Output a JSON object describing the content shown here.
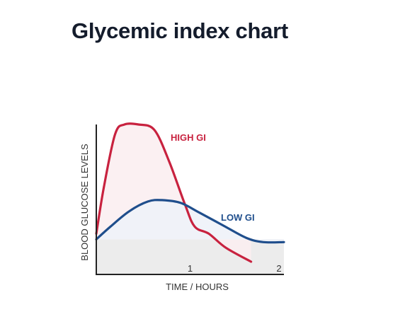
{
  "page": {
    "title": "Glycemic index chart"
  },
  "chart_data": {
    "type": "line",
    "title": "Glycemic index chart",
    "xlabel": "TIME / HOURS",
    "ylabel": "BLOOD GLUCOSE LEVELS",
    "xlim": [
      0,
      2
    ],
    "ylim": [
      0,
      1
    ],
    "x_ticks": [
      1,
      2
    ],
    "grid": false,
    "baseline": 0.18,
    "series": [
      {
        "name": "HIGH GI",
        "color": "#c8223f",
        "fill": "#fbeef1",
        "x": [
          0,
          0.08,
          0.2,
          0.3,
          0.45,
          0.62,
          0.78,
          0.95,
          1.05,
          1.2,
          1.38,
          1.65
        ],
        "y": [
          0.22,
          0.55,
          0.93,
          1.0,
          1.0,
          0.96,
          0.73,
          0.42,
          0.27,
          0.22,
          0.12,
          0.02
        ]
      },
      {
        "name": "LOW GI",
        "color": "#1f4e8c",
        "fill": "#eef2f8",
        "x": [
          0,
          0.15,
          0.35,
          0.55,
          0.7,
          0.9,
          1.1,
          1.35,
          1.6,
          1.78,
          2.0
        ],
        "y": [
          0.18,
          0.27,
          0.38,
          0.45,
          0.46,
          0.44,
          0.37,
          0.28,
          0.19,
          0.16,
          0.16
        ]
      }
    ]
  }
}
